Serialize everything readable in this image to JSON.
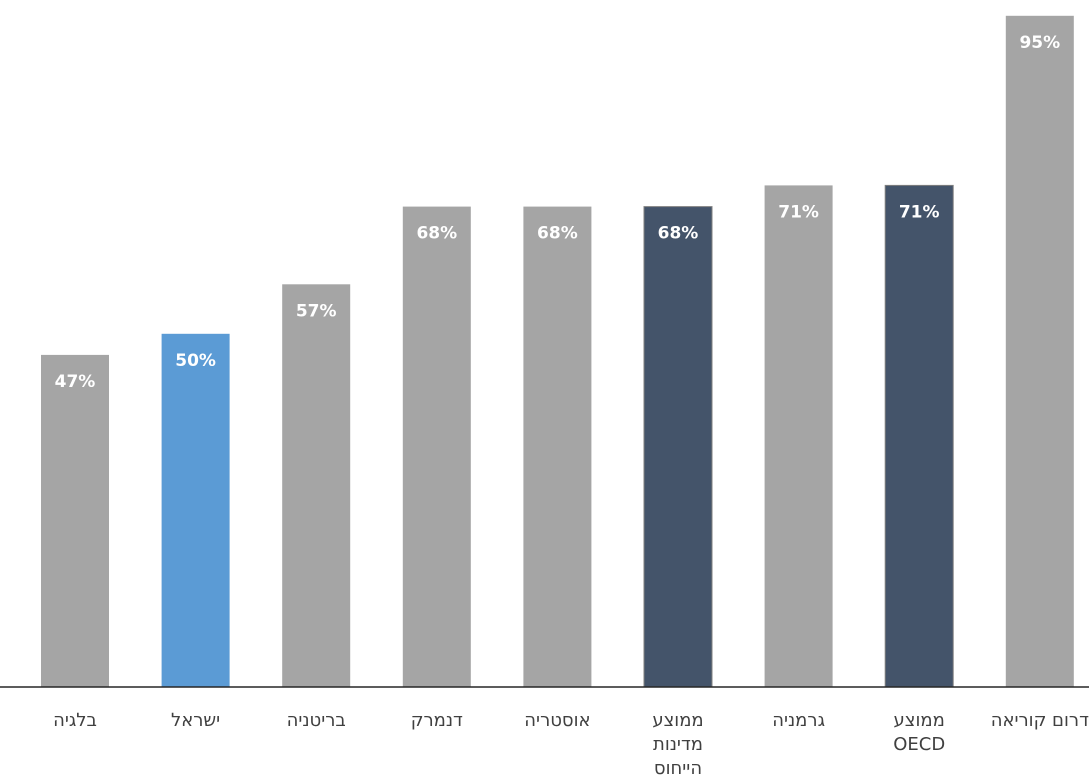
{
  "chart_data": {
    "type": "bar",
    "categories": [
      [
        "בלגיה"
      ],
      [
        "ישראל"
      ],
      [
        "בריטניה"
      ],
      [
        "דנמרק"
      ],
      [
        "אוסטריה"
      ],
      [
        "ממוצע",
        "מדינות",
        "הייחוס"
      ],
      [
        "גרמניה"
      ],
      [
        "ממוצע",
        "OECD"
      ],
      [
        "דרום קוריאה"
      ]
    ],
    "values": [
      47,
      50,
      57,
      68,
      68,
      68,
      71,
      71,
      95
    ],
    "value_labels": [
      "47%",
      "50%",
      "57%",
      "68%",
      "68%",
      "68%",
      "71%",
      "71%",
      "95%"
    ],
    "bar_colors": [
      "#a5a5a5",
      "#5b9bd5",
      "#a5a5a5",
      "#a5a5a5",
      "#a5a5a5",
      "#44546a",
      "#a5a5a5",
      "#44546a",
      "#a5a5a5"
    ],
    "ylim": [
      0,
      100
    ],
    "grid": false,
    "legend": "none"
  }
}
